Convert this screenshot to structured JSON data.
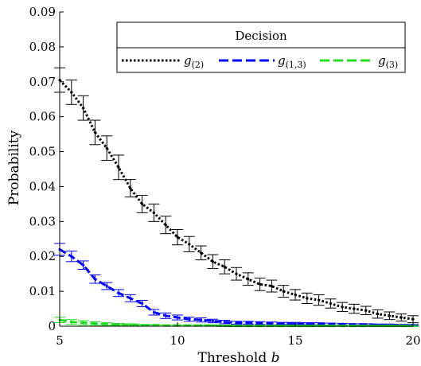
{
  "chart_data": {
    "type": "line",
    "xlabel": "Threshold",
    "xlabel_var": "b",
    "ylabel": "Probability",
    "xlim": [
      5,
      20
    ],
    "ylim": [
      0,
      0.09
    ],
    "x_ticks": [
      5,
      10,
      15,
      20
    ],
    "x_tick_labels": [
      "5",
      "10",
      "15",
      "20"
    ],
    "y_ticks": [
      0,
      0.01,
      0.02,
      0.03,
      0.04,
      0.05,
      0.06,
      0.07,
      0.08,
      0.09
    ],
    "y_tick_labels": [
      "0",
      "0.01",
      "0.02",
      "0.03",
      "0.04",
      "0.05",
      "0.06",
      "0.07",
      "0.08",
      "0.09"
    ],
    "grid": false,
    "legend": {
      "title": "Decision",
      "placement": "top-right",
      "orientation": "horizontal"
    },
    "series": [
      {
        "name": "g",
        "subscript": "(2)",
        "color": "#000000",
        "line_style": "dotted",
        "x": [
          5,
          5.5,
          6,
          6.5,
          7,
          7.5,
          8,
          8.5,
          9,
          9.5,
          10,
          10.5,
          11,
          11.5,
          12,
          12.5,
          13,
          13.5,
          14,
          14.5,
          15,
          15.5,
          16,
          16.5,
          17,
          17.5,
          18,
          18.5,
          19,
          19.5,
          20
        ],
        "y": [
          0.0705,
          0.067,
          0.0625,
          0.0555,
          0.051,
          0.0455,
          0.0395,
          0.035,
          0.0325,
          0.029,
          0.0255,
          0.0235,
          0.021,
          0.0185,
          0.017,
          0.015,
          0.0135,
          0.012,
          0.0115,
          0.01,
          0.009,
          0.008,
          0.0075,
          0.0065,
          0.0055,
          0.005,
          0.0045,
          0.0035,
          0.003,
          0.0025,
          0.002
        ],
        "error": [
          0.0035,
          0.0035,
          0.0035,
          0.0035,
          0.0035,
          0.0035,
          0.0025,
          0.0025,
          0.0025,
          0.0025,
          0.0022,
          0.0022,
          0.002,
          0.002,
          0.002,
          0.0018,
          0.0018,
          0.0018,
          0.0017,
          0.0017,
          0.0015,
          0.0015,
          0.0015,
          0.0013,
          0.0013,
          0.0013,
          0.0012,
          0.0012,
          0.0011,
          0.001,
          0.001
        ]
      },
      {
        "name": "g",
        "subscript": "(1,3)",
        "color": "#0000ff",
        "line_style": "dashed",
        "x": [
          5,
          5.5,
          6,
          6.5,
          7,
          7.5,
          8,
          8.5,
          9,
          9.5,
          10,
          10.5,
          11,
          11.5,
          12,
          12.5,
          13,
          13.5,
          14,
          14.5,
          15,
          15.5,
          16,
          16.5,
          17,
          17.5,
          18,
          18.5,
          19,
          19.5,
          20
        ],
        "y": [
          0.022,
          0.02,
          0.0175,
          0.0135,
          0.0115,
          0.0095,
          0.008,
          0.0065,
          0.004,
          0.003,
          0.0025,
          0.002,
          0.0018,
          0.0015,
          0.0012,
          0.001,
          0.001,
          0.0009,
          0.0008,
          0.0008,
          0.0008,
          0.0007,
          0.0007,
          0.0006,
          0.0006,
          0.0005,
          0.0005,
          0.0004,
          0.0004,
          0.0003,
          0.0003
        ],
        "error": [
          0.0017,
          0.0015,
          0.0012,
          0.0012,
          0.001,
          0.001,
          0.001,
          0.0009,
          0.0008,
          0.0008,
          0.0007,
          0.0006,
          0.0006,
          0.0005,
          0.0005,
          0.0004,
          0.0004,
          0.0004,
          0.0004,
          0.0003,
          0.0003,
          0.0003,
          0.0003,
          0.0003,
          0.0002,
          0.0002,
          0.0002,
          0.0002,
          0.0002,
          0.0002,
          0.0002
        ]
      },
      {
        "name": "g",
        "subscript": "(3)",
        "color": "#22dd22",
        "line_style": "dashed",
        "x": [
          5,
          5.5,
          6,
          6.5,
          7,
          7.5,
          8,
          8.5,
          9,
          9.5,
          10,
          10.5,
          11,
          11.5,
          12,
          12.5,
          13,
          13.5,
          14,
          14.5,
          15,
          15.5,
          16,
          16.5,
          17,
          17.5,
          18,
          18.5,
          19,
          19.5,
          20
        ],
        "y": [
          0.0018,
          0.0012,
          0.001,
          0.0008,
          0.0006,
          0.0005,
          0.0004,
          0.0003,
          0.0003,
          0.0002,
          0.0002,
          0.0002,
          0.0002,
          0.0002,
          0.0001,
          0.0001,
          0.0001,
          0.0001,
          0.0001,
          0.0001,
          0.0001,
          0.0001,
          0.0001,
          0.0001,
          0.0001,
          0.0001,
          0.0001,
          0.0001,
          0.0001,
          0.0001,
          0.0001
        ],
        "error": [
          0.0008,
          0.0007,
          0.0006,
          0.0005,
          0.0004,
          0.0003,
          0.0003,
          0.0002,
          0.0002,
          0.0002,
          0.0002,
          0.0002,
          0.0002,
          0.0002,
          0.0002,
          0.0002,
          0.0002,
          0.0002,
          0.0002,
          0.0002,
          0.0002,
          0.0002,
          0.0002,
          0.0002,
          0.0002,
          0.0002,
          0.0002,
          0.0002,
          0.0002,
          0.0002,
          0.0002
        ]
      }
    ]
  }
}
